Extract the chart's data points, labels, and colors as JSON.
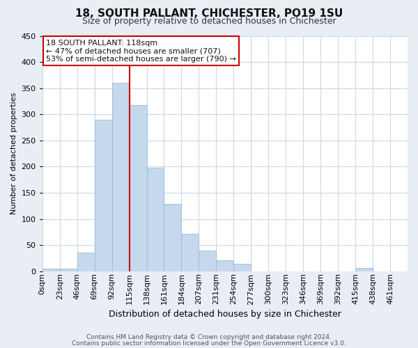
{
  "title": "18, SOUTH PALLANT, CHICHESTER, PO19 1SU",
  "subtitle": "Size of property relative to detached houses in Chichester",
  "xlabel": "Distribution of detached houses by size in Chichester",
  "ylabel": "Number of detached properties",
  "bin_labels": [
    "0sqm",
    "23sqm",
    "46sqm",
    "69sqm",
    "92sqm",
    "115sqm",
    "138sqm",
    "161sqm",
    "184sqm",
    "207sqm",
    "231sqm",
    "254sqm",
    "277sqm",
    "300sqm",
    "323sqm",
    "346sqm",
    "369sqm",
    "392sqm",
    "415sqm",
    "438sqm",
    "461sqm"
  ],
  "bar_values": [
    5,
    5,
    36,
    290,
    360,
    318,
    198,
    128,
    71,
    40,
    21,
    14,
    0,
    0,
    0,
    0,
    0,
    0,
    6,
    0,
    0
  ],
  "bar_color": "#c5d8ed",
  "bar_edgecolor": "#9bbcd8",
  "property_line_bin_index": 5,
  "annotation_title": "18 SOUTH PALLANT: 118sqm",
  "annotation_line1": "← 47% of detached houses are smaller (707)",
  "annotation_line2": "53% of semi-detached houses are larger (790) →",
  "annotation_box_facecolor": "#ffffff",
  "annotation_box_edgecolor": "#cc0000",
  "vline_color": "#cc0000",
  "ylim": [
    0,
    450
  ],
  "yticks": [
    0,
    50,
    100,
    150,
    200,
    250,
    300,
    350,
    400,
    450
  ],
  "footer_line1": "Contains HM Land Registry data © Crown copyright and database right 2024.",
  "footer_line2": "Contains public sector information licensed under the Open Government Licence v3.0.",
  "background_color": "#e8eef4",
  "plot_background_color": "#ffffff",
  "grid_color": "#c8d8e8",
  "title_fontsize": 11,
  "subtitle_fontsize": 9,
  "xlabel_fontsize": 9,
  "ylabel_fontsize": 8,
  "tick_fontsize": 8,
  "annotation_fontsize": 8,
  "footer_fontsize": 6.5
}
